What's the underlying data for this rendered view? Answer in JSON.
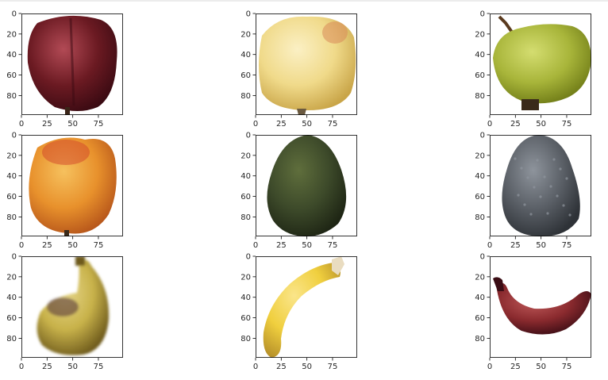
{
  "chart_data": {
    "type": "image-grid",
    "grid": {
      "rows": 3,
      "cols": 3
    },
    "axes": {
      "xlim": [
        0,
        99
      ],
      "ylim": [
        99,
        0
      ],
      "xticks": [
        0,
        25,
        50,
        75
      ],
      "yticks": [
        0,
        20,
        40,
        60,
        80
      ],
      "xtick_labels": [
        "0",
        "25",
        "50",
        "75"
      ],
      "ytick_labels": [
        "0",
        "20",
        "40",
        "60",
        "80"
      ],
      "grid": false
    },
    "panels": [
      {
        "subject": "red-apple",
        "colors": {
          "main": "#6b1a22",
          "dark": "#3a0a12",
          "light": "#b24a55"
        }
      },
      {
        "subject": "yellow-apple",
        "colors": {
          "main": "#f0da8a",
          "dark": "#c9a548",
          "light": "#fbf0c4",
          "blush": "#d98a5a"
        }
      },
      {
        "subject": "green-apple",
        "colors": {
          "main": "#a8b53a",
          "dark": "#6e7a16",
          "light": "#d4dd70",
          "stem": "#5a3a1e"
        }
      },
      {
        "subject": "orange-apple",
        "colors": {
          "main": "#e8912c",
          "dark": "#b5541a",
          "light": "#f6c15e",
          "blush": "#d2442a"
        }
      },
      {
        "subject": "dark-avocado",
        "colors": {
          "main": "#3d4a2a",
          "dark": "#1e2514",
          "light": "#5f6e3c"
        }
      },
      {
        "subject": "grey-avocado",
        "colors": {
          "main": "#5a5f66",
          "dark": "#2e3237",
          "light": "#8e949c"
        }
      },
      {
        "subject": "blurry-banana",
        "colors": {
          "main": "#c8b24a",
          "dark": "#6e5a1c",
          "light": "#e6d68a",
          "patch": "#5a3a3a"
        }
      },
      {
        "subject": "yellow-banana",
        "colors": {
          "main": "#f0cf3e",
          "dark": "#b8922a",
          "light": "#fae58a",
          "tip": "#e9dcc0"
        }
      },
      {
        "subject": "red-banana",
        "colors": {
          "main": "#8a2a2e",
          "dark": "#3a0c14",
          "light": "#c05a5a"
        }
      }
    ]
  }
}
